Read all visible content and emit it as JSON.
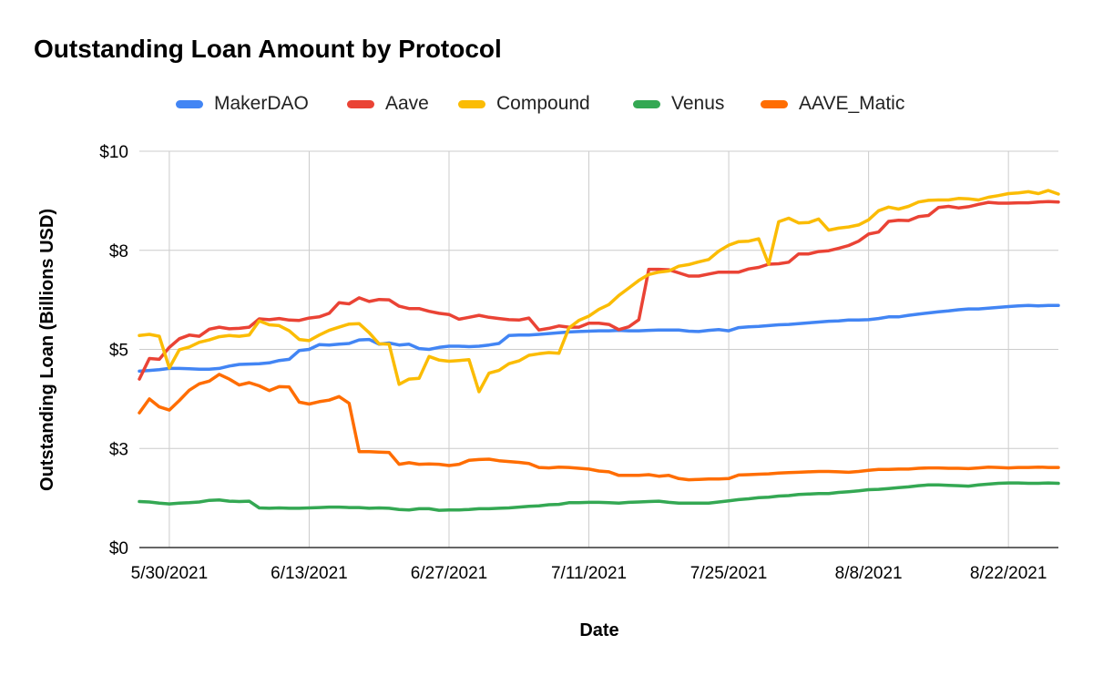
{
  "chart_data": {
    "type": "line",
    "title": "Outstanding Loan Amount by Protocol",
    "xlabel": "Date",
    "ylabel": "Outstanding Loan (Billions USD)",
    "ylim": [
      0,
      10
    ],
    "y_tick_labels": [
      "$0",
      "$3",
      "$5",
      "$8",
      "$10"
    ],
    "y_tick_values": [
      0,
      2.5,
      5,
      7.5,
      10
    ],
    "x_tick_labels": [
      "5/30/2021",
      "6/13/2021",
      "6/27/2021",
      "7/11/2021",
      "7/25/2021",
      "8/8/2021",
      "8/22/2021"
    ],
    "x_start": "5/27/2021",
    "x_end": "8/27/2021",
    "grid": true,
    "legend_position": "top",
    "x": [
      "5/27/2021",
      "5/28/2021",
      "5/29/2021",
      "5/30/2021",
      "5/31/2021",
      "6/1/2021",
      "6/2/2021",
      "6/3/2021",
      "6/4/2021",
      "6/5/2021",
      "6/6/2021",
      "6/7/2021",
      "6/8/2021",
      "6/9/2021",
      "6/10/2021",
      "6/11/2021",
      "6/12/2021",
      "6/13/2021",
      "6/14/2021",
      "6/15/2021",
      "6/16/2021",
      "6/17/2021",
      "6/18/2021",
      "6/19/2021",
      "6/20/2021",
      "6/21/2021",
      "6/22/2021",
      "6/23/2021",
      "6/24/2021",
      "6/25/2021",
      "6/26/2021",
      "6/27/2021",
      "6/28/2021",
      "6/29/2021",
      "6/30/2021",
      "7/1/2021",
      "7/2/2021",
      "7/3/2021",
      "7/4/2021",
      "7/5/2021",
      "7/6/2021",
      "7/7/2021",
      "7/8/2021",
      "7/9/2021",
      "7/10/2021",
      "7/11/2021",
      "7/12/2021",
      "7/13/2021",
      "7/14/2021",
      "7/15/2021",
      "7/16/2021",
      "7/17/2021",
      "7/18/2021",
      "7/19/2021",
      "7/20/2021",
      "7/21/2021",
      "7/22/2021",
      "7/23/2021",
      "7/24/2021",
      "7/25/2021",
      "7/26/2021",
      "7/27/2021",
      "7/28/2021",
      "7/29/2021",
      "7/30/2021",
      "7/31/2021",
      "8/1/2021",
      "8/2/2021",
      "8/3/2021",
      "8/4/2021",
      "8/5/2021",
      "8/6/2021",
      "8/7/2021",
      "8/8/2021",
      "8/9/2021",
      "8/10/2021",
      "8/11/2021",
      "8/12/2021",
      "8/13/2021",
      "8/14/2021",
      "8/15/2021",
      "8/16/2021",
      "8/17/2021",
      "8/18/2021",
      "8/19/2021",
      "8/20/2021",
      "8/21/2021",
      "8/22/2021",
      "8/23/2021",
      "8/24/2021",
      "8/25/2021",
      "8/26/2021",
      "8/27/2021"
    ],
    "series": [
      {
        "name": "MakerDAO",
        "color": "#4285F4",
        "values": [
          4.45,
          4.47,
          4.49,
          4.52,
          4.52,
          4.51,
          4.5,
          4.5,
          4.52,
          4.58,
          4.62,
          4.63,
          4.64,
          4.66,
          4.72,
          4.75,
          4.97,
          5.0,
          5.12,
          5.11,
          5.13,
          5.15,
          5.24,
          5.25,
          5.13,
          5.16,
          5.11,
          5.13,
          5.02,
          5.0,
          5.05,
          5.08,
          5.08,
          5.07,
          5.08,
          5.11,
          5.15,
          5.35,
          5.36,
          5.36,
          5.38,
          5.4,
          5.42,
          5.44,
          5.45,
          5.46,
          5.47,
          5.47,
          5.48,
          5.47,
          5.47,
          5.48,
          5.49,
          5.49,
          5.49,
          5.46,
          5.45,
          5.48,
          5.5,
          5.47,
          5.55,
          5.57,
          5.58,
          5.6,
          5.62,
          5.63,
          5.65,
          5.67,
          5.69,
          5.71,
          5.72,
          5.74,
          5.74,
          5.75,
          5.78,
          5.82,
          5.82,
          5.86,
          5.89,
          5.92,
          5.95,
          5.97,
          6.0,
          6.02,
          6.02,
          6.04,
          6.06,
          6.08,
          6.1,
          6.11,
          6.1,
          6.11,
          6.11
        ]
      },
      {
        "name": "Aave",
        "color": "#EA4335",
        "values": [
          4.25,
          4.77,
          4.75,
          5.05,
          5.27,
          5.36,
          5.33,
          5.51,
          5.56,
          5.52,
          5.53,
          5.56,
          5.77,
          5.75,
          5.78,
          5.74,
          5.73,
          5.79,
          5.82,
          5.91,
          6.18,
          6.15,
          6.3,
          6.21,
          6.26,
          6.25,
          6.09,
          6.03,
          6.03,
          5.96,
          5.91,
          5.88,
          5.76,
          5.81,
          5.86,
          5.81,
          5.78,
          5.75,
          5.74,
          5.79,
          5.49,
          5.53,
          5.59,
          5.56,
          5.56,
          5.66,
          5.66,
          5.63,
          5.5,
          5.57,
          5.75,
          7.02,
          7.02,
          7.01,
          6.93,
          6.85,
          6.85,
          6.9,
          6.95,
          6.95,
          6.95,
          7.03,
          7.07,
          7.15,
          7.16,
          7.2,
          7.41,
          7.41,
          7.47,
          7.49,
          7.55,
          7.62,
          7.73,
          7.91,
          7.96,
          8.23,
          8.26,
          8.25,
          8.35,
          8.38,
          8.58,
          8.61,
          8.57,
          8.6,
          8.66,
          8.71,
          8.69,
          8.69,
          8.7,
          8.7,
          8.72,
          8.73,
          8.72
        ]
      },
      {
        "name": "Compound",
        "color": "#FBBC04",
        "values": [
          5.35,
          5.38,
          5.33,
          4.53,
          4.99,
          5.06,
          5.18,
          5.24,
          5.32,
          5.35,
          5.33,
          5.36,
          5.72,
          5.62,
          5.6,
          5.47,
          5.25,
          5.22,
          5.36,
          5.48,
          5.56,
          5.64,
          5.65,
          5.42,
          5.14,
          5.13,
          4.12,
          4.25,
          4.27,
          4.82,
          4.73,
          4.7,
          4.72,
          4.74,
          3.93,
          4.4,
          4.47,
          4.64,
          4.71,
          4.85,
          4.89,
          4.92,
          4.9,
          5.54,
          5.73,
          5.84,
          6.01,
          6.13,
          6.36,
          6.55,
          6.74,
          6.89,
          6.95,
          6.98,
          7.1,
          7.14,
          7.21,
          7.27,
          7.48,
          7.63,
          7.72,
          7.73,
          7.79,
          7.15,
          8.22,
          8.31,
          8.19,
          8.2,
          8.29,
          8.01,
          8.06,
          8.09,
          8.14,
          8.27,
          8.5,
          8.59,
          8.54,
          8.61,
          8.72,
          8.76,
          8.77,
          8.77,
          8.81,
          8.8,
          8.77,
          8.84,
          8.88,
          8.93,
          8.95,
          8.98,
          8.93,
          9.01,
          8.92
        ]
      },
      {
        "name": "Venus",
        "color": "#34A853",
        "values": [
          1.16,
          1.15,
          1.12,
          1.1,
          1.12,
          1.13,
          1.15,
          1.19,
          1.2,
          1.17,
          1.16,
          1.17,
          1.0,
          0.99,
          1.0,
          0.99,
          0.99,
          1.0,
          1.01,
          1.02,
          1.02,
          1.01,
          1.01,
          0.99,
          1.0,
          0.99,
          0.96,
          0.95,
          0.98,
          0.98,
          0.94,
          0.95,
          0.95,
          0.96,
          0.98,
          0.98,
          0.99,
          1.0,
          1.02,
          1.04,
          1.05,
          1.08,
          1.09,
          1.13,
          1.13,
          1.14,
          1.14,
          1.13,
          1.12,
          1.14,
          1.15,
          1.16,
          1.17,
          1.14,
          1.12,
          1.12,
          1.12,
          1.12,
          1.15,
          1.18,
          1.21,
          1.23,
          1.26,
          1.27,
          1.3,
          1.31,
          1.34,
          1.35,
          1.36,
          1.36,
          1.39,
          1.41,
          1.43,
          1.46,
          1.47,
          1.49,
          1.51,
          1.53,
          1.56,
          1.58,
          1.58,
          1.57,
          1.56,
          1.55,
          1.58,
          1.6,
          1.62,
          1.63,
          1.63,
          1.62,
          1.62,
          1.63,
          1.62
        ]
      },
      {
        "name": "AAVE_Matic",
        "color": "#FF6D01",
        "values": [
          3.4,
          3.75,
          3.55,
          3.47,
          3.71,
          3.97,
          4.13,
          4.2,
          4.37,
          4.25,
          4.1,
          4.16,
          4.08,
          3.96,
          4.06,
          4.05,
          3.67,
          3.62,
          3.68,
          3.72,
          3.81,
          3.64,
          2.42,
          2.42,
          2.41,
          2.4,
          2.1,
          2.14,
          2.1,
          2.11,
          2.1,
          2.07,
          2.1,
          2.2,
          2.22,
          2.23,
          2.19,
          2.17,
          2.15,
          2.12,
          2.02,
          2.01,
          2.03,
          2.02,
          2.0,
          1.98,
          1.93,
          1.91,
          1.82,
          1.82,
          1.82,
          1.84,
          1.8,
          1.82,
          1.74,
          1.71,
          1.72,
          1.73,
          1.73,
          1.74,
          1.83,
          1.84,
          1.85,
          1.86,
          1.88,
          1.89,
          1.9,
          1.91,
          1.92,
          1.92,
          1.91,
          1.9,
          1.92,
          1.95,
          1.97,
          1.97,
          1.98,
          1.98,
          2.0,
          2.01,
          2.01,
          2.0,
          2.0,
          1.99,
          2.01,
          2.03,
          2.02,
          2.01,
          2.02,
          2.02,
          2.03,
          2.02,
          2.02
        ]
      }
    ]
  }
}
